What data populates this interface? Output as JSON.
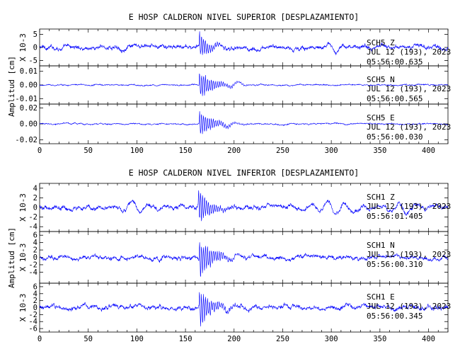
{
  "chart_data": [
    {
      "type": "line",
      "title": "E HOSP CALDERON NIVEL SUPERIOR [DESPLAZAMIENTO]",
      "ylabel": "Amplitud [cm]",
      "xlim": [
        0,
        420
      ],
      "x_ticks": [
        0,
        50,
        100,
        150,
        200,
        250,
        300,
        350,
        400
      ],
      "line_color": "#0000ff",
      "grid": false,
      "panels": [
        {
          "name": "SCH5 Z",
          "channel": "SCH5   Z",
          "date": "JUL 12 (193), 2023",
          "time": "05:56:00.635",
          "multiplier": "X 10-3",
          "ylim": [
            -7,
            7
          ],
          "y_ticks": [
            {
              "v": 5,
              "label": "5"
            },
            {
              "v": 0,
              "label": "0"
            },
            {
              "v": -5,
              "label": "-5"
            }
          ],
          "signal": {
            "noise": 0.9,
            "peak": 5.8,
            "event_time": 164,
            "decay": 9,
            "bursts": [
              [
                182,
                2.0,
                6
              ],
              [
                300,
                1.2,
                15
              ]
            ]
          }
        },
        {
          "name": "SCH5 N",
          "channel": "SCH5   N",
          "date": "JUL 12 (193), 2023",
          "time": "05:56:00.565",
          "multiplier": "",
          "ylim": [
            -0.014,
            0.014
          ],
          "y_ticks": [
            {
              "v": 0.01,
              "label": "0.01"
            },
            {
              "v": 0,
              "label": "0.00"
            },
            {
              "v": -0.01,
              "label": "-0.01"
            }
          ],
          "signal": {
            "noise": 0.0005,
            "peak": 0.012,
            "event_time": 164,
            "decay": 14,
            "bursts": [
              [
                200,
                0.002,
                12
              ]
            ]
          }
        },
        {
          "name": "SCH5 E",
          "channel": "SCH5   E",
          "date": "JUL 12 (193), 2023",
          "time": "05:56:00.030",
          "multiplier": "",
          "ylim": [
            -0.025,
            0.025
          ],
          "y_ticks": [
            {
              "v": 0.02,
              "label": "0.02"
            },
            {
              "v": 0,
              "label": "0.00"
            },
            {
              "v": -0.02,
              "label": "-0.02"
            }
          ],
          "signal": {
            "noise": 0.0009,
            "peak": 0.019,
            "event_time": 164,
            "decay": 14,
            "bursts": [
              [
                195,
                0.004,
                12
              ]
            ]
          }
        }
      ]
    },
    {
      "type": "line",
      "title": "E HOSP CALDERON NIVEL INFERIOR [DESPLAZAMIENTO]",
      "ylabel": "Amplitud [cm]",
      "xlim": [
        0,
        420
      ],
      "x_ticks": [
        0,
        50,
        100,
        150,
        200,
        250,
        300,
        350,
        400
      ],
      "line_color": "#0000ff",
      "grid": false,
      "panels": [
        {
          "name": "SCH1 Z",
          "channel": "SCH1   Z",
          "date": "JUL 12 (193), 2023",
          "time": "05:56:01.405",
          "multiplier": "X 10-3",
          "ylim": [
            -5,
            5
          ],
          "y_ticks": [
            {
              "v": 4,
              "label": "4"
            },
            {
              "v": 2,
              "label": "2"
            },
            {
              "v": 0,
              "label": "0"
            },
            {
              "v": -2,
              "label": "-2"
            },
            {
              "v": -4,
              "label": "-4"
            }
          ],
          "signal": {
            "noise": 0.5,
            "peak": 4.5,
            "event_time": 163,
            "decay": 11,
            "bursts": [
              [
                100,
                0.9,
                25
              ],
              [
                300,
                1.1,
                30
              ],
              [
                375,
                1.2,
                12
              ]
            ]
          }
        },
        {
          "name": "SCH1 N",
          "channel": "SCH1   N",
          "date": "JUL 12 (193), 2023",
          "time": "05:56:00.310",
          "multiplier": "X 10-3",
          "ylim": [
            -7,
            7
          ],
          "y_ticks": [
            {
              "v": 6,
              "label": "6"
            },
            {
              "v": 4,
              "label": "4"
            },
            {
              "v": 2,
              "label": "2"
            },
            {
              "v": 0,
              "label": "0"
            },
            {
              "v": -2,
              "label": "-2"
            },
            {
              "v": -4,
              "label": "-4"
            }
          ],
          "signal": {
            "noise": 0.6,
            "peak": 6.0,
            "event_time": 164,
            "decay": 13,
            "bursts": [
              [
                200,
                1.0,
                10
              ]
            ]
          }
        },
        {
          "name": "SCH1 E",
          "channel": "SCH1   E",
          "date": "JUL 12 (193), 2023",
          "time": "05:56:00.345",
          "multiplier": "X 10-3",
          "ylim": [
            -7,
            7
          ],
          "y_ticks": [
            {
              "v": 6,
              "label": "6"
            },
            {
              "v": 4,
              "label": "4"
            },
            {
              "v": 2,
              "label": "2"
            },
            {
              "v": 0,
              "label": "0"
            },
            {
              "v": -2,
              "label": "-2"
            },
            {
              "v": -4,
              "label": "-4"
            },
            {
              "v": -6,
              "label": "-6"
            }
          ],
          "signal": {
            "noise": 0.7,
            "peak": 6.3,
            "event_time": 164,
            "decay": 12,
            "bursts": [
              [
                195,
                1.0,
                10
              ]
            ]
          }
        }
      ]
    }
  ]
}
